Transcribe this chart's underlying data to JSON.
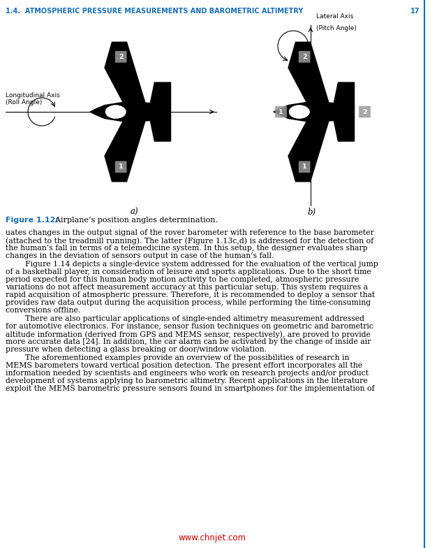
{
  "header_text": "1.4.  ATMOSPHERIC PRESSURE MEASUREMENTS AND BAROMETRIC ALTIMETRY",
  "header_page": "17",
  "header_color": "#1a6db5",
  "fig_label": "Figure 1.12:",
  "fig_caption": "  Airplane’s position angles determination.",
  "fig_label_color": "#1a6db5",
  "fig_caption_color": "#000000",
  "label_a": "a)",
  "label_b": "b)",
  "long_axis_label_line1": "Longitudinal Axis",
  "long_axis_label_line2": "(Roll Angle)",
  "lat_axis_label_line1": "Lateral Axis",
  "lat_axis_label_line2": "(Pitch Angle)",
  "watermark": "www.chnjet.com",
  "watermark_color": "#cc0000",
  "right_border_color": "#1a6db5",
  "bg_color": "#ffffff",
  "text_color": "#000000",
  "link_color": "#1a6db5",
  "body_text_size": 7.8,
  "para1_lines": [
    "uates changes in the output signal of the rover barometer with reference to the base barometer",
    "(attached to the treadmill running). The latter (Figure 1.13c,d) is addressed for the detection of",
    "the human’s fall in terms of a telemedicine system. In this setup, the designer evaluates sharp",
    "changes in the deviation of sensors output in case of the human’s fall."
  ],
  "para2_lines": [
    "        Figure 1.14 depicts a single-device system addressed for the evaluation of the vertical jump",
    "of a basketball player, in consideration of leisure and sports applications. Due to the short time",
    "period expected for this human body motion activity to be completed, atmospheric pressure",
    "variations do not affect measurement accuracy at this particular setup. This system requires a",
    "rapid acquisition of atmospheric pressure. Therefore, it is recommended to deploy a sensor that",
    "provides raw data output during the acquisition process, while performing the time-consuming",
    "conversions offline."
  ],
  "para3_lines": [
    "        There are also particular applications of single-ended altimetry measurement addressed",
    "for automotive electronics. For instance, sensor fusion techniques on geometric and barometric",
    "altitude information (derived from GPS and MEMS sensor, respectively), are proved to provide",
    "more accurate data [24]. In addition, the car alarm can be activated by the change of inside air",
    "pressure when detecting a glass breaking or door/window violation."
  ],
  "para4_lines": [
    "        The aforementioned examples provide an overview of the possibilities of research in",
    "MEMS barometers toward vertical position detection. The present effort incorporates all the",
    "information needed by scientists and engineers who work on research projects and/or product",
    "development of systems applying to barometric altimetry. Recent applications in the literature",
    "exploit the MEMS barometric pressure sensors found in smartphones for the implementation of"
  ]
}
